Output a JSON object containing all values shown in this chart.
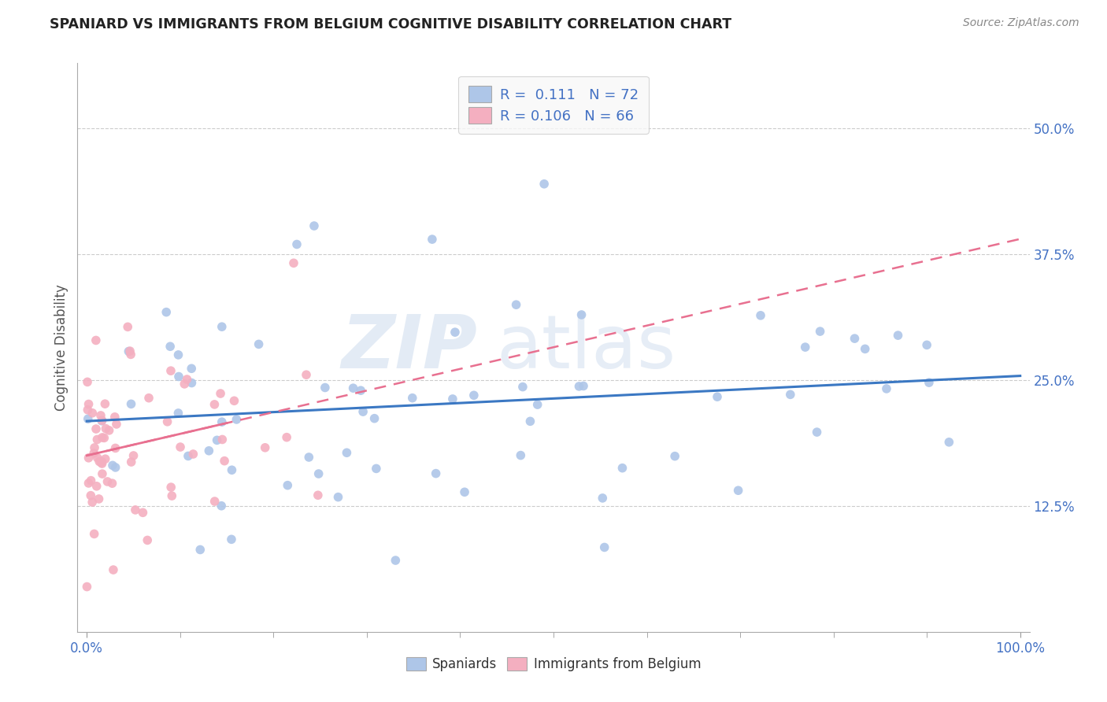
{
  "title": "SPANIARD VS IMMIGRANTS FROM BELGIUM COGNITIVE DISABILITY CORRELATION CHART",
  "source": "Source: ZipAtlas.com",
  "ylabel": "Cognitive Disability",
  "xlim": [
    0.0,
    1.0
  ],
  "ylim": [
    0.0,
    0.55
  ],
  "ytick_labels": [
    "12.5%",
    "25.0%",
    "37.5%",
    "50.0%"
  ],
  "ytick_vals": [
    0.125,
    0.25,
    0.375,
    0.5
  ],
  "legend1_R": "0.111",
  "legend1_N": "72",
  "legend2_R": "0.106",
  "legend2_N": "66",
  "color_blue": "#aec6e8",
  "color_pink": "#f4afc0",
  "line_blue": "#3b78c3",
  "line_pink": "#e87090",
  "background": "#ffffff",
  "watermark_zip": "ZIP",
  "watermark_atlas": "atlas"
}
